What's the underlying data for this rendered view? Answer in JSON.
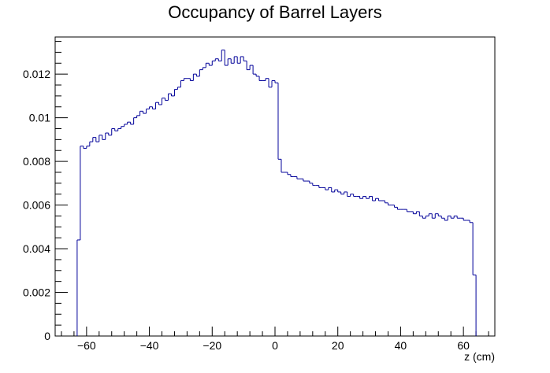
{
  "chart_data": {
    "type": "histogram",
    "title": "Occupancy of Barrel Layers",
    "xlabel": "z (cm)",
    "ylabel": "",
    "xlim": [
      -70,
      70
    ],
    "ylim": [
      0,
      0.0137
    ],
    "grid": false,
    "legend": "none",
    "line_color": "#000099",
    "x_ticks": [
      -60,
      -40,
      -20,
      0,
      20,
      40,
      60
    ],
    "x_tick_labels": [
      "−60",
      "−40",
      "−20",
      "0",
      "20",
      "40",
      "60"
    ],
    "y_ticks": [
      0,
      0.002,
      0.004,
      0.006,
      0.008,
      0.01,
      0.012
    ],
    "y_tick_labels": [
      "0",
      "0.002",
      "0.004",
      "0.006",
      "0.008",
      "0.01",
      "0.012"
    ],
    "bin_width": 1,
    "bin_edges_range": [
      -63,
      64
    ],
    "values": [
      0.0044,
      0.0087,
      0.0086,
      0.0087,
      0.0089,
      0.0091,
      0.0089,
      0.0092,
      0.009,
      0.0093,
      0.0092,
      0.0095,
      0.0094,
      0.0095,
      0.0096,
      0.0097,
      0.0098,
      0.0097,
      0.01,
      0.0101,
      0.0103,
      0.0102,
      0.0104,
      0.0105,
      0.0104,
      0.0107,
      0.0106,
      0.0109,
      0.0108,
      0.0111,
      0.011,
      0.0113,
      0.0114,
      0.0117,
      0.0118,
      0.0118,
      0.0117,
      0.012,
      0.0119,
      0.0122,
      0.0123,
      0.0125,
      0.0124,
      0.0126,
      0.0127,
      0.0126,
      0.0131,
      0.0124,
      0.0127,
      0.0125,
      0.0128,
      0.0125,
      0.0128,
      0.0126,
      0.0122,
      0.0124,
      0.012,
      0.0119,
      0.0117,
      0.0117,
      0.0118,
      0.0114,
      0.0117,
      0.0116,
      0.0081,
      0.0075,
      0.0075,
      0.0074,
      0.0073,
      0.0073,
      0.0072,
      0.0072,
      0.0071,
      0.0071,
      0.007,
      0.0069,
      0.0069,
      0.0068,
      0.0068,
      0.0067,
      0.0068,
      0.0066,
      0.0067,
      0.0066,
      0.0065,
      0.0066,
      0.0064,
      0.0065,
      0.0064,
      0.0064,
      0.0063,
      0.0064,
      0.0063,
      0.0064,
      0.0062,
      0.0063,
      0.0062,
      0.0062,
      0.0061,
      0.006,
      0.006,
      0.0059,
      0.0058,
      0.0058,
      0.0058,
      0.0057,
      0.0057,
      0.0056,
      0.0057,
      0.0055,
      0.0054,
      0.0055,
      0.0056,
      0.0054,
      0.0056,
      0.0055,
      0.0054,
      0.0053,
      0.0055,
      0.0054,
      0.0055,
      0.0054,
      0.0054,
      0.0053,
      0.0053,
      0.0052,
      0.0028
    ]
  }
}
